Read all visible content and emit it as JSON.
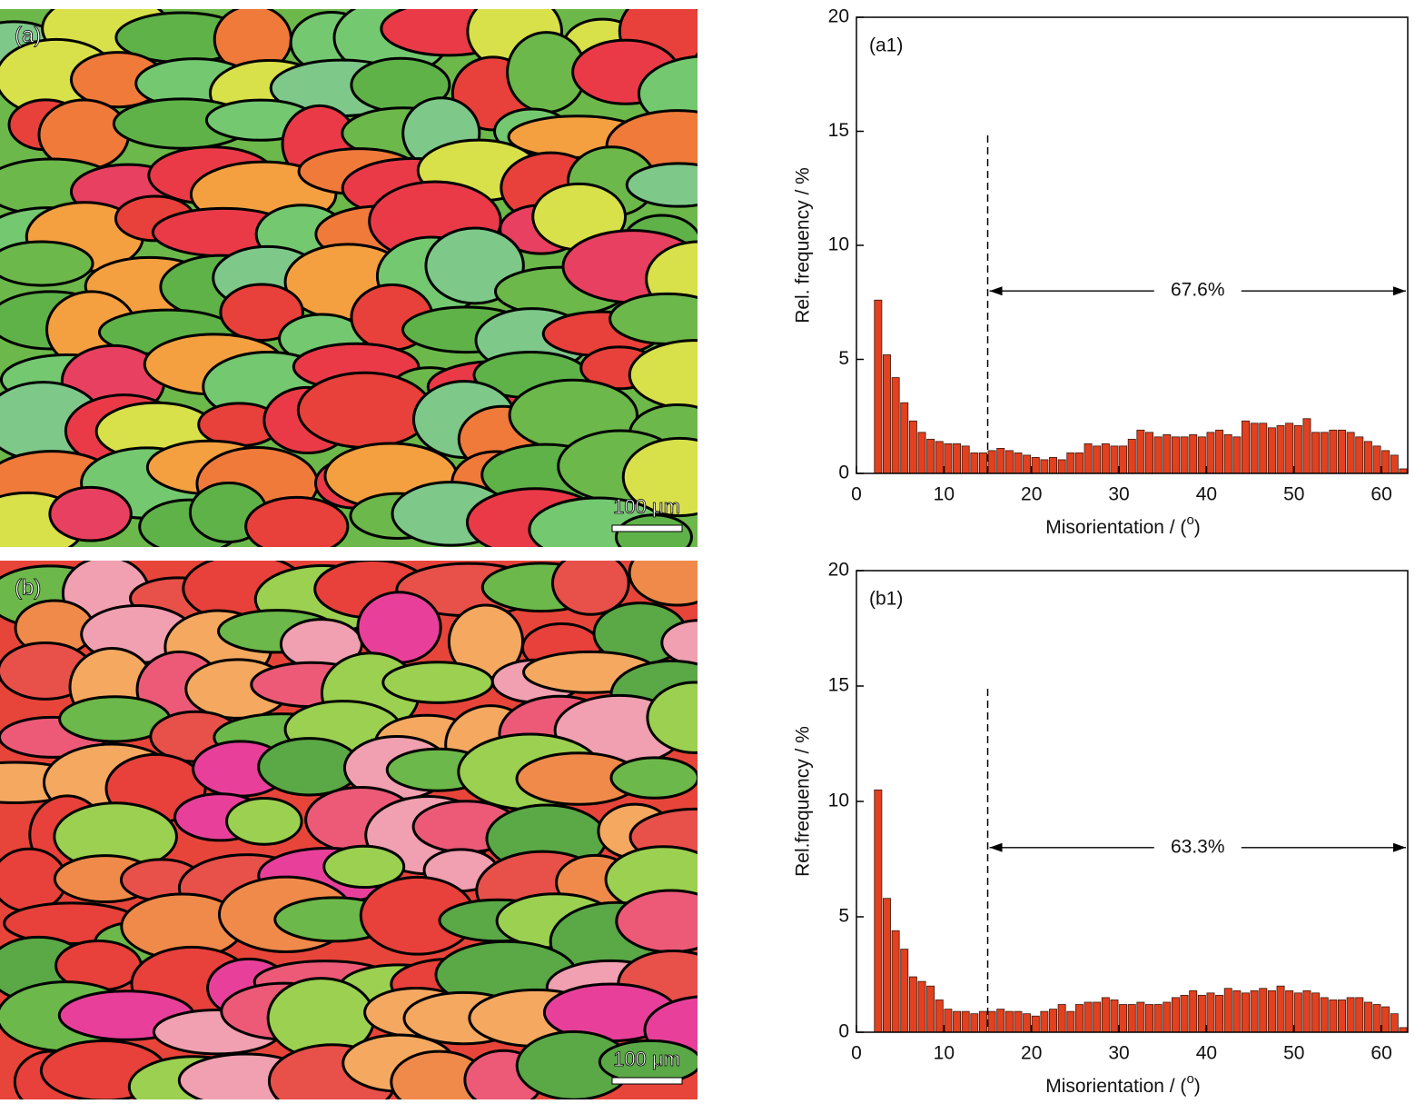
{
  "images": [
    {
      "label": "(a)",
      "scale_bar": "100 μm"
    },
    {
      "label": "(b)",
      "scale_bar": "100 μm"
    }
  ],
  "chart_data": [
    {
      "type": "histogram",
      "panel_label": "(a1)",
      "x_label": [
        "Misorientation / (",
        "o",
        ")"
      ],
      "y_label": "Rel. frequency / %",
      "bins": [
        2,
        3,
        4,
        5,
        6,
        7,
        8,
        9,
        10,
        11,
        12,
        13,
        14,
        15,
        16,
        17,
        18,
        19,
        20,
        21,
        22,
        23,
        24,
        25,
        26,
        27,
        28,
        29,
        30,
        31,
        32,
        33,
        34,
        35,
        36,
        37,
        38,
        39,
        40,
        41,
        42,
        43,
        44,
        45,
        46,
        47,
        48,
        49,
        50,
        51,
        52,
        53,
        54,
        55,
        56,
        57,
        58,
        59,
        60,
        61,
        62,
        63
      ],
      "values": [
        7.6,
        5.2,
        4.2,
        3.1,
        2.3,
        1.8,
        1.5,
        1.4,
        1.3,
        1.3,
        1.2,
        0.9,
        0.9,
        1.0,
        1.1,
        1.0,
        0.9,
        0.8,
        0.7,
        0.6,
        0.7,
        0.6,
        0.9,
        0.9,
        1.3,
        1.2,
        1.3,
        1.2,
        1.2,
        1.5,
        1.9,
        1.8,
        1.6,
        1.7,
        1.6,
        1.6,
        1.7,
        1.6,
        1.8,
        1.9,
        1.7,
        1.6,
        2.3,
        2.2,
        2.2,
        2.0,
        2.1,
        2.2,
        2.1,
        2.4,
        1.8,
        1.8,
        1.9,
        1.9,
        1.8,
        1.6,
        1.4,
        1.2,
        1.0,
        0.8,
        0.2
      ],
      "color": "#e2401f",
      "xlim": [
        0,
        63
      ],
      "xticks": [
        0,
        10,
        20,
        30,
        40,
        50,
        60
      ],
      "ylim": [
        0,
        20
      ],
      "yticks": [
        0,
        5,
        10,
        15,
        20
      ],
      "vline": 15,
      "annotation": {
        "value": 67.6,
        "label": "67.6%"
      }
    },
    {
      "type": "histogram",
      "panel_label": "(b1)",
      "x_label": [
        "Misorientation / (",
        "o",
        ")"
      ],
      "y_label": "Rel.frequency / %",
      "bins": [
        2,
        3,
        4,
        5,
        6,
        7,
        8,
        9,
        10,
        11,
        12,
        13,
        14,
        15,
        16,
        17,
        18,
        19,
        20,
        21,
        22,
        23,
        24,
        25,
        26,
        27,
        28,
        29,
        30,
        31,
        32,
        33,
        34,
        35,
        36,
        37,
        38,
        39,
        40,
        41,
        42,
        43,
        44,
        45,
        46,
        47,
        48,
        49,
        50,
        51,
        52,
        53,
        54,
        55,
        56,
        57,
        58,
        59,
        60,
        61,
        62,
        63
      ],
      "values": [
        10.5,
        5.8,
        4.4,
        3.6,
        2.4,
        2.2,
        2.0,
        1.4,
        1.0,
        0.9,
        0.9,
        0.8,
        0.9,
        0.9,
        1.0,
        0.9,
        0.9,
        0.8,
        0.7,
        0.9,
        1.0,
        1.2,
        0.9,
        1.2,
        1.3,
        1.3,
        1.5,
        1.4,
        1.2,
        1.2,
        1.3,
        1.2,
        1.2,
        1.3,
        1.5,
        1.6,
        1.8,
        1.6,
        1.7,
        1.6,
        1.9,
        1.8,
        1.7,
        1.8,
        1.9,
        1.8,
        2.0,
        1.8,
        1.7,
        1.8,
        1.7,
        1.5,
        1.4,
        1.4,
        1.5,
        1.5,
        1.3,
        1.2,
        1.1,
        0.8,
        0.2
      ],
      "color": "#e2401f",
      "xlim": [
        0,
        63
      ],
      "xticks": [
        0,
        10,
        20,
        30,
        40,
        50,
        60
      ],
      "ylim": [
        0,
        20
      ],
      "yticks": [
        0,
        5,
        10,
        15,
        20
      ],
      "vline": 15,
      "annotation": {
        "value": 63.3,
        "label": "63.3%"
      }
    }
  ]
}
